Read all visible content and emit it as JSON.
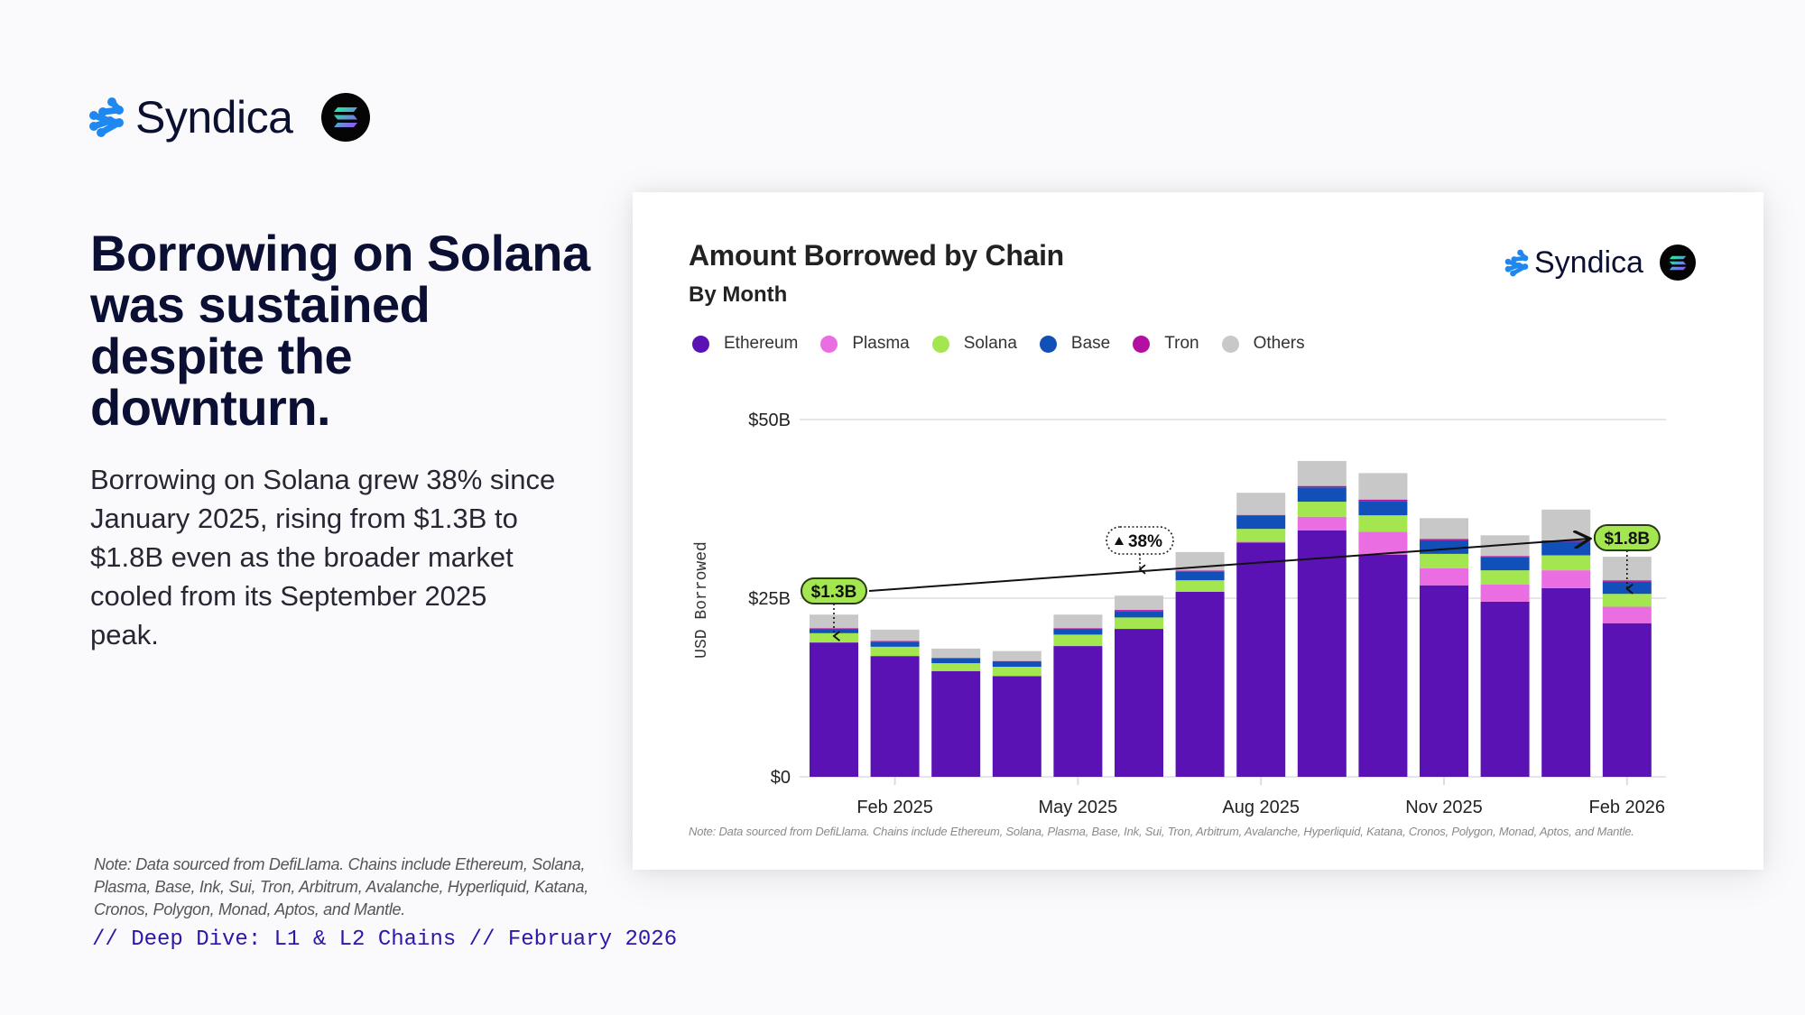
{
  "brand": {
    "name": "Syndica",
    "logo_icon": "syndica-logo-icon",
    "partner_icon": "solana-logo-icon",
    "colors": {
      "logo_blue": "#1e88f0",
      "text": "#0b1030"
    }
  },
  "headline": "Borrowing on Solana was sustained despite the downturn.",
  "body": "Borrowing on Solana grew 38% since January 2025, rising from $1.3B to $1.8B even as the broader market cooled from its September 2025 peak.",
  "left_note": "Note: Data sourced from DefiLlama. Chains include Ethereum, Solana, Plasma, Base, Ink, Sui, Tron, Arbitrum, Avalanche, Hyperliquid, Katana, Cronos, Polygon, Monad, Aptos, and Mantle.",
  "footer_tag": "// Deep Dive: L1 & L2 Chains // February 2026",
  "card": {
    "note": "Note: Data sourced from DefiLlama. Chains include Ethereum, Solana, Plasma, Base, Ink, Sui, Tron, Arbitrum, Avalanche, Hyperliquid, Katana, Cronos, Polygon, Monad, Aptos, and Mantle."
  },
  "chart_data": {
    "type": "bar",
    "stacked": true,
    "title": "Amount Borrowed by Chain",
    "subtitle": "By Month",
    "xlabel": "",
    "ylabel": "USD Borrowed",
    "ylim": [
      0,
      50
    ],
    "y_unit": "USD billions",
    "y_ticks": [
      {
        "value": 0,
        "label": "$0"
      },
      {
        "value": 25,
        "label": "$25B"
      },
      {
        "value": 50,
        "label": "$50B"
      }
    ],
    "grid": true,
    "legend_position": "top-left",
    "categories": [
      "Jan 2025",
      "Feb 2025",
      "Mar 2025",
      "Apr 2025",
      "May 2025",
      "Jun 2025",
      "Jul 2025",
      "Aug 2025",
      "Sep 2025",
      "Oct 2025",
      "Nov 2025",
      "Dec 2025",
      "Jan 2026",
      "Feb 2026"
    ],
    "x_tick_labels": [
      {
        "index": 1,
        "label": "Feb 2025"
      },
      {
        "index": 4,
        "label": "May 2025"
      },
      {
        "index": 7,
        "label": "Aug 2025"
      },
      {
        "index": 10,
        "label": "Nov 2025"
      },
      {
        "index": 13,
        "label": "Feb 2026"
      }
    ],
    "series": [
      {
        "name": "Ethereum",
        "color": "#5b12b4",
        "values": [
          18.8,
          16.9,
          14.8,
          14.1,
          18.3,
          20.7,
          25.9,
          32.8,
          34.5,
          31.1,
          26.8,
          24.5,
          26.4,
          21.5
        ]
      },
      {
        "name": "Plasma",
        "color": "#ea6ee2",
        "values": [
          0,
          0,
          0,
          0,
          0,
          0,
          0,
          0.1,
          1.9,
          3.2,
          2.4,
          2.4,
          2.5,
          2.3
        ]
      },
      {
        "name": "Solana",
        "color": "#a3e64f",
        "values": [
          1.3,
          1.3,
          1.1,
          1.3,
          1.6,
          1.6,
          1.6,
          1.8,
          2.1,
          2.3,
          2.0,
          2.0,
          2.1,
          1.8
        ]
      },
      {
        "name": "Base",
        "color": "#1150b8",
        "values": [
          0.6,
          0.7,
          0.65,
          0.7,
          0.8,
          0.9,
          1.2,
          1.8,
          2.0,
          2.0,
          1.9,
          1.8,
          1.9,
          1.7
        ]
      },
      {
        "name": "Tron",
        "color": "#b30fa0",
        "values": [
          0.1,
          0.1,
          0.1,
          0.1,
          0.1,
          0.15,
          0.15,
          0.15,
          0.2,
          0.2,
          0.2,
          0.2,
          0.2,
          0.2
        ]
      },
      {
        "name": "Others",
        "color": "#c8c8c8",
        "values": [
          1.9,
          1.6,
          1.3,
          1.4,
          1.9,
          2.0,
          2.6,
          3.1,
          3.5,
          3.7,
          2.9,
          2.9,
          4.3,
          3.3
        ]
      }
    ],
    "annotations": [
      {
        "type": "value-pill",
        "label": "$1.3B",
        "category": "Jan 2025",
        "series": "Solana",
        "color": "#a3e64f"
      },
      {
        "type": "value-pill",
        "label": "$1.8B",
        "category": "Feb 2026",
        "series": "Solana",
        "color": "#a3e64f"
      },
      {
        "type": "trend-arrow",
        "from": "Jan 2025",
        "to": "Jan 2026"
      },
      {
        "type": "change-bubble",
        "label": "38%",
        "icon": "up-triangle-icon"
      }
    ]
  }
}
